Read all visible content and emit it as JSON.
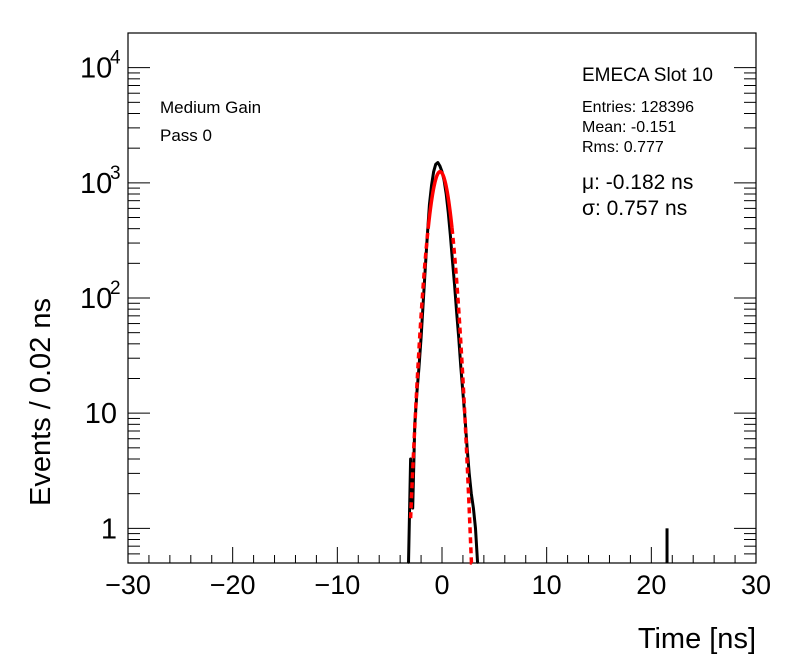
{
  "chart_data": {
    "type": "line",
    "title": "EMECA Slot 10",
    "xlabel": "Time [ns]",
    "ylabel": "Events / 0.02 ns",
    "xlim": [
      -30,
      30
    ],
    "ylim": [
      0.5,
      20000
    ],
    "yscale": "log",
    "grid": false,
    "x_ticks": [
      {
        "value": -30,
        "label": "−30"
      },
      {
        "value": -20,
        "label": "−20"
      },
      {
        "value": -10,
        "label": "−10"
      },
      {
        "value": 0,
        "label": "0"
      },
      {
        "value": 10,
        "label": "10"
      },
      {
        "value": 20,
        "label": "20"
      },
      {
        "value": 30,
        "label": "30"
      }
    ],
    "y_ticks": [
      {
        "value": 1,
        "base": "1",
        "exp": ""
      },
      {
        "value": 10,
        "base": "10",
        "exp": ""
      },
      {
        "value": 100,
        "base": "10",
        "exp": "2"
      },
      {
        "value": 1000,
        "base": "10",
        "exp": "3"
      },
      {
        "value": 10000,
        "base": "10",
        "exp": "4"
      }
    ],
    "annotations_left": [
      "Medium Gain",
      "Pass 0"
    ],
    "stats": [
      "Entries: 128396",
      "Mean: -0.151",
      "Rms: 0.777"
    ],
    "fit_results": [
      "μ: -0.182 ns",
      "σ: 0.757 ns"
    ],
    "series": [
      {
        "role": "histogram",
        "color": "#000000",
        "x": [
          -3.2,
          -3.0,
          -2.8,
          -2.6,
          -2.4,
          -2.2,
          -2.0,
          -1.8,
          -1.6,
          -1.4,
          -1.2,
          -1.0,
          -0.8,
          -0.6,
          -0.4,
          -0.2,
          0.0,
          0.2,
          0.4,
          0.6,
          0.8,
          1.0,
          1.2,
          1.4,
          1.6,
          1.8,
          2.0,
          2.2,
          2.4,
          2.6,
          2.8,
          3.0,
          3.2,
          3.4
        ],
        "y": [
          0.5,
          4,
          1.5,
          8,
          15,
          25,
          45,
          90,
          180,
          350,
          650,
          950,
          1250,
          1450,
          1500,
          1400,
          1250,
          1050,
          800,
          550,
          350,
          210,
          130,
          75,
          45,
          25,
          15,
          9,
          5,
          3,
          2,
          1.5,
          1,
          0.5
        ]
      },
      {
        "role": "fit",
        "color": "#ff0000",
        "mu": -0.182,
        "sigma": 0.757,
        "peak": 1250,
        "x_range": [
          -3.0,
          3.0
        ]
      },
      {
        "role": "outlier",
        "color": "#000000",
        "x": [
          21.5
        ],
        "y": [
          1
        ]
      }
    ]
  }
}
